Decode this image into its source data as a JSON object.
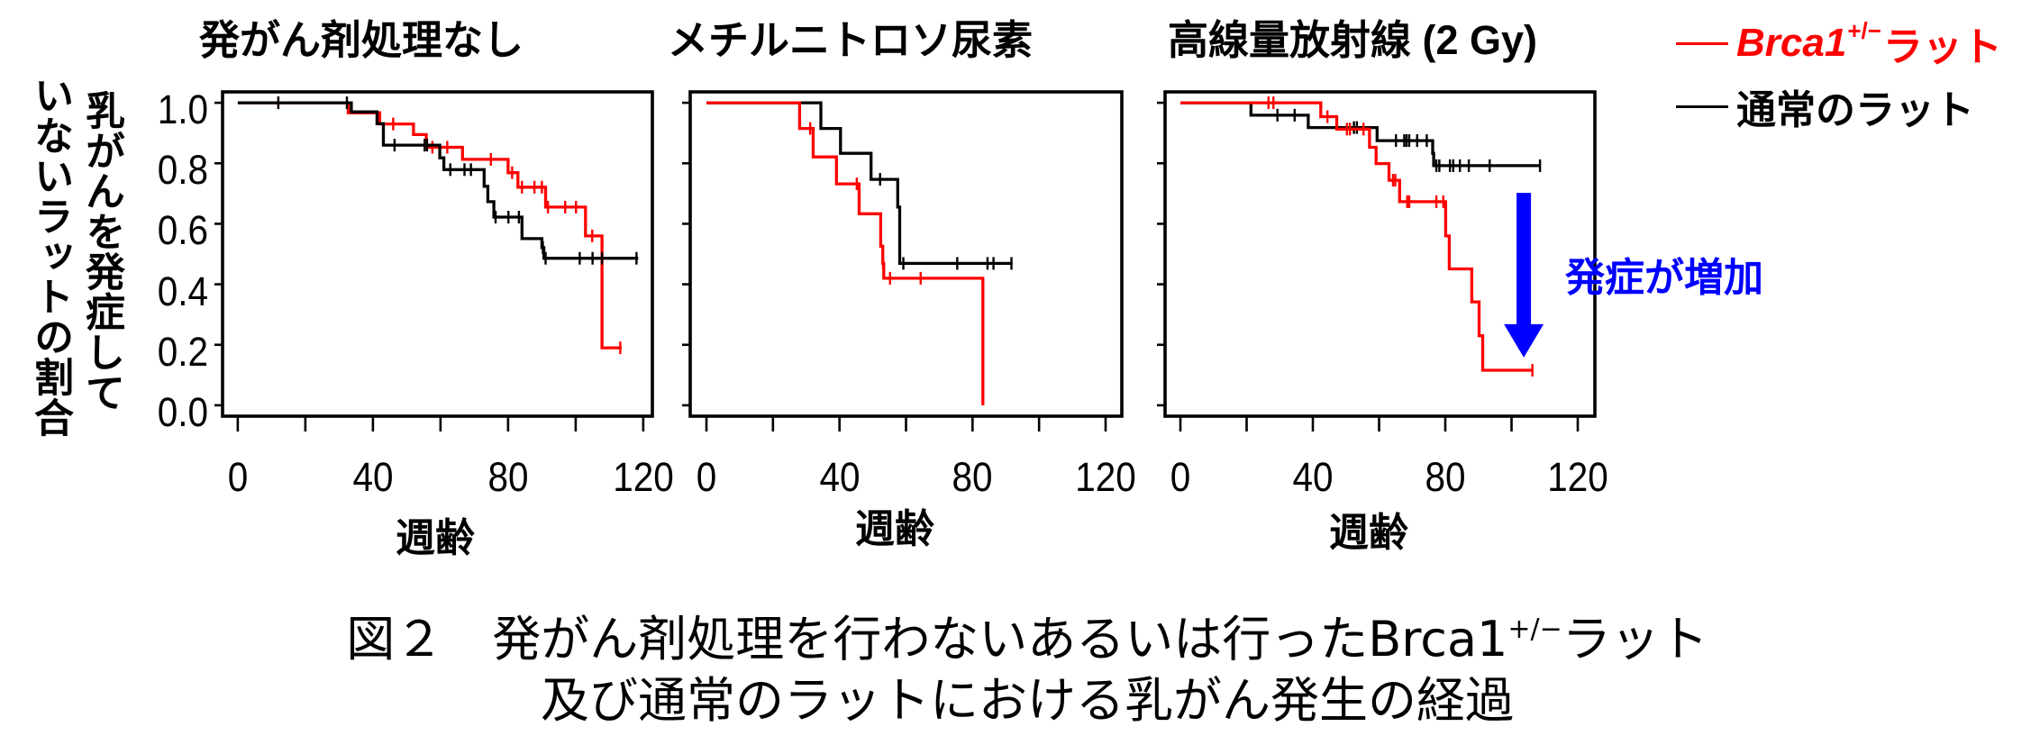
{
  "legend": {
    "items": [
      {
        "gene": "Brca1",
        "superscript": "+/−",
        "label": "ラット",
        "color": "#ff0000",
        "icon": "red-line"
      },
      {
        "label": "通常のラット",
        "color": "#000000",
        "icon": "black-line"
      }
    ]
  },
  "axes": {
    "ylabel_lines": [
      "乳がんを発症して",
      "いないラットの割合"
    ],
    "xlabel": "週齢"
  },
  "caption": {
    "line1_prefix": "図２　発がん剤処理を行わないあるいは行った",
    "line1_gene": "Brca1",
    "line1_superscript": "+/−",
    "line1_suffix": "ラット",
    "line2": "及び通常のラットにおける乳がん発生の経過"
  },
  "chart_data": [
    {
      "type": "line",
      "style": "kaplan-meier-step",
      "title": "発がん剤処理なし",
      "xlabel": "週齢",
      "ylabel": "乳がんを発症していないラットの割合",
      "xlim": [
        -4.5,
        122.7
      ],
      "ylim": [
        -0.036,
        1.036
      ],
      "xticks": [
        0,
        20,
        40,
        60,
        80,
        100,
        120
      ],
      "xticklabel_values": [
        0,
        40,
        80,
        120
      ],
      "xticklabels": [
        "0",
        "40",
        "80",
        "120"
      ],
      "yticks": [
        0,
        0.2,
        0.4,
        0.6,
        0.8,
        1.0
      ],
      "yticklabel_values": [
        1.0,
        0.8,
        0.6,
        0.4,
        0.2,
        0.0
      ],
      "yticklabels": [
        "1.0",
        "0.8",
        "0.6",
        "0.4",
        "0.2",
        "0.0"
      ],
      "grid": false,
      "legend_position": "outside-top-right",
      "series": [
        {
          "key": "brca1",
          "name": "Brca1+/−ラット",
          "color": "#ff0000",
          "steps": [
            [
              0,
              1.0
            ],
            [
              32.7,
              0.967
            ],
            [
              42.0,
              0.93
            ],
            [
              52.0,
              0.895
            ],
            [
              55.8,
              0.853
            ],
            [
              66.5,
              0.813
            ],
            [
              80.0,
              0.769
            ],
            [
              82.9,
              0.721
            ],
            [
              91.1,
              0.655
            ],
            [
              102.9,
              0.56
            ],
            [
              107.8,
              0.19
            ]
          ],
          "end": 113.6,
          "censored": [
            12.0,
            46.0,
            57.6,
            62.0,
            74.9,
            81.2,
            84.1,
            87.8,
            90.0,
            91.8,
            96.9,
            100.1,
            104.9,
            113.2
          ]
        },
        {
          "key": "normal",
          "name": "通常のラット",
          "color": "#000000",
          "steps": [
            [
              0,
              1.0
            ],
            [
              33.6,
              0.97
            ],
            [
              41.2,
              0.931
            ],
            [
              43.1,
              0.86
            ],
            [
              59.8,
              0.818
            ],
            [
              61.0,
              0.779
            ],
            [
              72.9,
              0.724
            ],
            [
              74.0,
              0.673
            ],
            [
              75.8,
              0.622
            ],
            [
              84.1,
              0.551
            ],
            [
              90.0,
              0.521
            ],
            [
              90.6,
              0.486
            ]
          ],
          "end": 118.5,
          "censored": [
            12.0,
            32.3,
            46.4,
            55.3,
            56.0,
            62.9,
            67.1,
            69.0,
            76.3,
            80.1,
            83.2,
            90.3,
            91.1,
            101.2,
            105.0,
            107.8,
            118.0
          ]
        }
      ]
    },
    {
      "type": "line",
      "style": "kaplan-meier-step",
      "title": "メチルニトロソ尿素",
      "xlabel": "週齢",
      "ylabel": "乳がんを発症していないラットの割合",
      "xlim": [
        -4.88,
        124.88
      ],
      "ylim": [
        -0.036,
        1.036
      ],
      "xticks": [
        0,
        20,
        40,
        60,
        80,
        100,
        120
      ],
      "xticklabel_values": [
        0,
        40,
        80,
        120
      ],
      "xticklabels": [
        "0",
        "40",
        "80",
        "120"
      ],
      "yticks": [
        0,
        0.2,
        0.4,
        0.6,
        0.8,
        1.0
      ],
      "yticklabels": [],
      "grid": false,
      "series": [
        {
          "key": "normal",
          "name": "通常のラット",
          "color": "#000000",
          "steps": [
            [
              0,
              1.0
            ],
            [
              34.4,
              0.915
            ],
            [
              40.3,
              0.833
            ],
            [
              49.5,
              0.747
            ],
            [
              57.5,
              0.655
            ],
            [
              58.1,
              0.469
            ]
          ],
          "end": 92.0,
          "censored": [
            52.2,
            59.2,
            75.4,
            84.5,
            86.3,
            91.7
          ]
        },
        {
          "key": "brca1",
          "name": "Brca1+/−ラット",
          "color": "#ff0000",
          "steps": [
            [
              0,
              1.0
            ],
            [
              28.0,
              0.915
            ],
            [
              32.1,
              0.821
            ],
            [
              39.1,
              0.732
            ],
            [
              45.9,
              0.633
            ],
            [
              52.4,
              0.526
            ],
            [
              53.0,
              0.469
            ],
            [
              53.3,
              0.42
            ],
            [
              83.1,
              0.0
            ]
          ],
          "end": 83.1,
          "censored": [
            31.2,
            45.2,
            53.1,
            55.2,
            64.4
          ]
        }
      ]
    },
    {
      "type": "line",
      "style": "kaplan-meier-step",
      "title": "高線量放射線 (2 Gy)",
      "xlabel": "週齢",
      "ylabel": "乳がんを発症していないラットの割合",
      "xlim": [
        -4.63,
        125.17
      ],
      "ylim": [
        -0.036,
        1.036
      ],
      "xticks": [
        0,
        20,
        40,
        60,
        80,
        100,
        120
      ],
      "xticklabel_values": [
        0,
        40,
        80,
        120
      ],
      "xticklabels": [
        "0",
        "40",
        "80",
        "120"
      ],
      "yticks": [
        0,
        0.2,
        0.4,
        0.6,
        0.8,
        1.0
      ],
      "yticklabels": [],
      "grid": false,
      "series": [
        {
          "key": "normal",
          "name": "通常のラット",
          "color": "#000000",
          "steps": [
            [
              0,
              1.0
            ],
            [
              21.3,
              0.959
            ],
            [
              38.6,
              0.918
            ],
            [
              59.4,
              0.875
            ],
            [
              76.2,
              0.833
            ],
            [
              76.5,
              0.792
            ]
          ],
          "end": 108.8,
          "censored": [
            29.3,
            34.5,
            52.4,
            53.3,
            65.1,
            67.6,
            68.3,
            69.1,
            71.5,
            74.4,
            77.3,
            78.2,
            81.4,
            82.4,
            84.4,
            87.1,
            93.4,
            108.6
          ]
        },
        {
          "key": "brca1",
          "name": "Brca1+/−ラット",
          "color": "#ff0000",
          "steps": [
            [
              0,
              1.0
            ],
            [
              42.4,
              0.954
            ],
            [
              47.2,
              0.913
            ],
            [
              57.1,
              0.853
            ],
            [
              59.1,
              0.799
            ],
            [
              63.0,
              0.744
            ],
            [
              66.2,
              0.673
            ],
            [
              80.1,
              0.56
            ],
            [
              81.2,
              0.451
            ],
            [
              88.0,
              0.342
            ],
            [
              90.2,
              0.23
            ],
            [
              91.3,
              0.116
            ]
          ],
          "end": 106.6,
          "censored": [
            26.6,
            28.1,
            44.4,
            50.3,
            51.2,
            55.3,
            64.2,
            64.9,
            68.5,
            69.1,
            77.3,
            79.4,
            106.3
          ]
        }
      ],
      "annotations": [
        {
          "type": "arrow-down",
          "text": "発症が増加",
          "color": "#0000ff",
          "x": 103.7,
          "y_from": 0.702,
          "y_to": 0.158
        }
      ]
    }
  ]
}
